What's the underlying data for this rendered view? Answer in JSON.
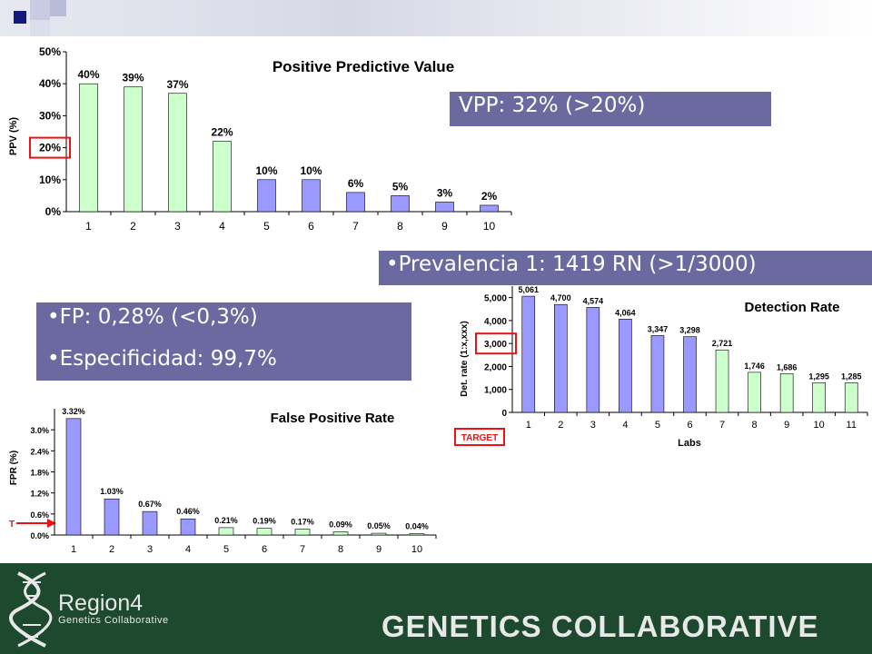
{
  "callouts": {
    "vpp": "VPP: 32% (>20%)",
    "prevalencia": "•Prevalencia 1: 1419 RN (>1/3000)",
    "fp": "•FP: 0,28% (<0,3%)",
    "especificidad": "•Especificidad: 99,7%"
  },
  "footer": {
    "logo_title": "Region4",
    "logo_subtitle": "Genetics Collaborative",
    "brand_text": "GENETICS COLLABORATIVE"
  },
  "colors": {
    "blue_bar": "#9999ff",
    "green_bar": "#ccffcc",
    "highlight": "#ee1111",
    "callout_bg": "#6a6aa0",
    "footer_bg": "#1d4a2f"
  },
  "chart_data": [
    {
      "type": "bar",
      "title": "Positive Predictive Value",
      "ylabel": "PPV (%)",
      "xlabel": "",
      "categories": [
        "1",
        "2",
        "3",
        "4",
        "5",
        "6",
        "7",
        "8",
        "9",
        "10"
      ],
      "values": [
        40,
        39,
        37,
        22,
        10,
        10,
        6,
        5,
        3,
        2
      ],
      "value_labels": [
        "40%",
        "39%",
        "37%",
        "22%",
        "10%",
        "10%",
        "6%",
        "5%",
        "3%",
        "2%"
      ],
      "bar_colors": [
        "green",
        "green",
        "green",
        "green",
        "blue",
        "blue",
        "blue",
        "blue",
        "blue",
        "blue"
      ],
      "yticks": [
        0,
        10,
        20,
        30,
        40,
        50
      ],
      "ytick_labels": [
        "0%",
        "10%",
        "20%",
        "30%",
        "40%",
        "50%"
      ],
      "ylim": [
        0,
        50
      ],
      "highlight_tick": "20%",
      "grid": false
    },
    {
      "type": "bar",
      "title": "Detection Rate",
      "ylabel": "Det. rate (1:x,xxx)",
      "xlabel": "Labs",
      "categories": [
        "1",
        "2",
        "3",
        "4",
        "5",
        "6",
        "7",
        "8",
        "9",
        "10",
        "11"
      ],
      "values": [
        5061,
        4700,
        4574,
        4064,
        3347,
        3298,
        2721,
        1746,
        1686,
        1295,
        1285
      ],
      "value_labels": [
        "5,061",
        "4,700",
        "4,574",
        "4,064",
        "3,347",
        "3,298",
        "2,721",
        "1,746",
        "1,686",
        "1,295",
        "1,285"
      ],
      "bar_colors": [
        "blue",
        "blue",
        "blue",
        "blue",
        "blue",
        "blue",
        "green",
        "green",
        "green",
        "green",
        "green"
      ],
      "yticks": [
        0,
        1000,
        2000,
        3000,
        4000,
        5000
      ],
      "ytick_labels": [
        "0",
        "1,000",
        "2,000",
        "3,000",
        "4,000",
        "5,000"
      ],
      "ylim": [
        0,
        5500
      ],
      "highlight_tick": "3,000",
      "target_label": "TARGET",
      "grid": false
    },
    {
      "type": "bar",
      "title": "False Positive Rate",
      "ylabel": "FPR (%)",
      "xlabel": "",
      "categories": [
        "1",
        "2",
        "3",
        "4",
        "5",
        "6",
        "7",
        "8",
        "9",
        "10"
      ],
      "values": [
        3.32,
        1.03,
        0.67,
        0.46,
        0.21,
        0.19,
        0.17,
        0.09,
        0.05,
        0.04
      ],
      "value_labels": [
        "3.32%",
        "1.03%",
        "0.67%",
        "0.46%",
        "0.21%",
        "0.19%",
        "0.17%",
        "0.09%",
        "0.05%",
        "0.04%"
      ],
      "bar_colors": [
        "blue",
        "blue",
        "blue",
        "blue",
        "green",
        "green",
        "green",
        "green",
        "green",
        "green"
      ],
      "yticks": [
        0,
        0.6,
        1.2,
        1.8,
        2.4,
        3.0
      ],
      "ytick_labels": [
        "0.0%",
        "0.6%",
        "1.2%",
        "1.8%",
        "2.4%",
        "3.0%"
      ],
      "ylim": [
        0,
        3.6
      ],
      "target_marker": "T",
      "grid": false
    }
  ]
}
